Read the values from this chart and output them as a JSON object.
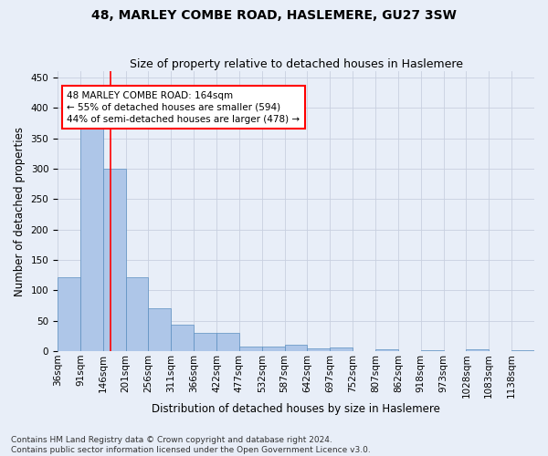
{
  "title": "48, MARLEY COMBE ROAD, HASLEMERE, GU27 3SW",
  "subtitle": "Size of property relative to detached houses in Haslemere",
  "xlabel": "Distribution of detached houses by size in Haslemere",
  "ylabel": "Number of detached properties",
  "bin_labels": [
    "36sqm",
    "91sqm",
    "146sqm",
    "201sqm",
    "256sqm",
    "311sqm",
    "366sqm",
    "422sqm",
    "477sqm",
    "532sqm",
    "587sqm",
    "642sqm",
    "697sqm",
    "752sqm",
    "807sqm",
    "862sqm",
    "918sqm",
    "973sqm",
    "1028sqm",
    "1083sqm",
    "1138sqm"
  ],
  "bar_heights": [
    122,
    375,
    300,
    122,
    70,
    43,
    30,
    30,
    8,
    8,
    10,
    5,
    6,
    0,
    3,
    0,
    2,
    0,
    3,
    0,
    2
  ],
  "bar_color": "#aec6e8",
  "bar_edge_color": "#5a8fc0",
  "background_color": "#e8eef8",
  "grid_color": "#c8d0e0",
  "red_line_x": 2.63,
  "annotation_line1": "48 MARLEY COMBE ROAD: 164sqm",
  "annotation_line2": "← 55% of detached houses are smaller (594)",
  "annotation_line3": "44% of semi-detached houses are larger (478) →",
  "annotation_box_color": "white",
  "annotation_box_edge_color": "red",
  "ylim": [
    0,
    460
  ],
  "yticks": [
    0,
    50,
    100,
    150,
    200,
    250,
    300,
    350,
    400,
    450
  ],
  "footnote1": "Contains HM Land Registry data © Crown copyright and database right 2024.",
  "footnote2": "Contains public sector information licensed under the Open Government Licence v3.0.",
  "title_fontsize": 10,
  "subtitle_fontsize": 9,
  "xlabel_fontsize": 8.5,
  "ylabel_fontsize": 8.5,
  "tick_fontsize": 7.5,
  "annotation_fontsize": 7.5,
  "footnote_fontsize": 6.5
}
